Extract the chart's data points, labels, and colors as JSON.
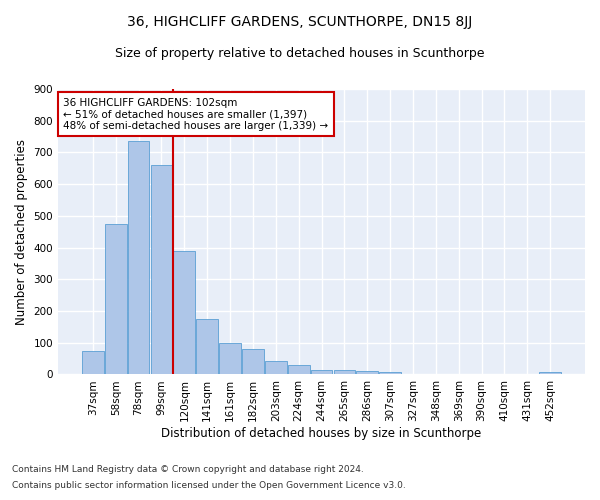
{
  "title": "36, HIGHCLIFF GARDENS, SCUNTHORPE, DN15 8JJ",
  "subtitle": "Size of property relative to detached houses in Scunthorpe",
  "xlabel": "Distribution of detached houses by size in Scunthorpe",
  "ylabel": "Number of detached properties",
  "categories": [
    "37sqm",
    "58sqm",
    "78sqm",
    "99sqm",
    "120sqm",
    "141sqm",
    "161sqm",
    "182sqm",
    "203sqm",
    "224sqm",
    "244sqm",
    "265sqm",
    "286sqm",
    "307sqm",
    "327sqm",
    "348sqm",
    "369sqm",
    "390sqm",
    "410sqm",
    "431sqm",
    "452sqm"
  ],
  "values": [
    75,
    475,
    735,
    660,
    390,
    175,
    100,
    80,
    43,
    30,
    14,
    13,
    11,
    8,
    0,
    0,
    0,
    0,
    0,
    0,
    8
  ],
  "bar_color": "#aec6e8",
  "bar_edgecolor": "#5a9fd4",
  "vline_color": "#cc0000",
  "annotation_text": "36 HIGHCLIFF GARDENS: 102sqm\n← 51% of detached houses are smaller (1,397)\n48% of semi-detached houses are larger (1,339) →",
  "annotation_box_color": "#ffffff",
  "annotation_box_edgecolor": "#cc0000",
  "ylim": [
    0,
    900
  ],
  "yticks": [
    0,
    100,
    200,
    300,
    400,
    500,
    600,
    700,
    800,
    900
  ],
  "background_color": "#e8eef8",
  "grid_color": "#ffffff",
  "footer_line1": "Contains HM Land Registry data © Crown copyright and database right 2024.",
  "footer_line2": "Contains public sector information licensed under the Open Government Licence v3.0.",
  "title_fontsize": 10,
  "subtitle_fontsize": 9,
  "xlabel_fontsize": 8.5,
  "ylabel_fontsize": 8.5,
  "tick_fontsize": 7.5,
  "annotation_fontsize": 7.5,
  "footer_fontsize": 6.5
}
